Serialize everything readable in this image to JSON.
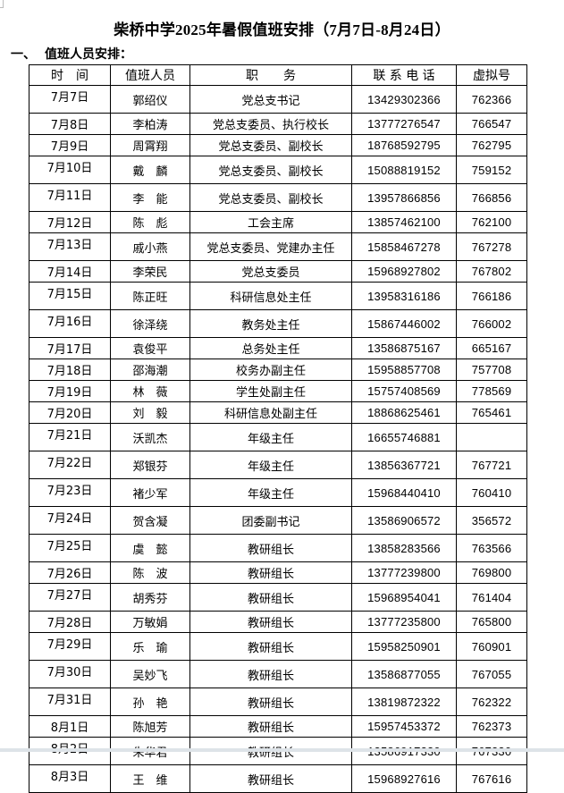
{
  "title": "柴桥中学2025年暑假值班安排（7月7日-8月24日）",
  "section": {
    "number": "一、",
    "label": "值班人员安排："
  },
  "table": {
    "headers": [
      "时　间",
      "值班人员",
      "职　　务",
      "联 系 电 话",
      "虚拟号"
    ],
    "rows": [
      [
        "7月7日",
        "郭绍仪",
        "党总支书记",
        "13429302366",
        "762366"
      ],
      [
        "7月8日",
        "李柏涛",
        "党总支委员、执行校长",
        "13777276547",
        "766547"
      ],
      [
        "7月9日",
        "周霄翔",
        "党总支委员、副校长",
        "18768592795",
        "762795"
      ],
      [
        "7月10日",
        "戴　麟",
        "党总支委员、副校长",
        "15088819152",
        "759152"
      ],
      [
        "7月11日",
        "李　能",
        "党总支委员、副校长",
        "13957866856",
        "766856"
      ],
      [
        "7月12日",
        "陈　彪",
        "工会主席",
        "13857462100",
        "762100"
      ],
      [
        "7月13日",
        "戚小燕",
        "党总支委员、党建办主任",
        "15858467278",
        "767278"
      ],
      [
        "7月14日",
        "李荣民",
        "党总支委员",
        "15968927802",
        "767802"
      ],
      [
        "7月15日",
        "陈正旺",
        "科研信息处主任",
        "13958316186",
        "766186"
      ],
      [
        "7月16日",
        "徐泽绕",
        "教务处主任",
        "15867446002",
        "766002"
      ],
      [
        "7月17日",
        "袁俊平",
        "总务处主任",
        "13586875167",
        "665167"
      ],
      [
        "7月18日",
        "邵海潮",
        "校务办副主任",
        "15958857708",
        "757708"
      ],
      [
        "7月19日",
        "林　薇",
        "学生处副主任",
        "15757408569",
        "778569"
      ],
      [
        "7月20日",
        "刘　毅",
        "科研信息处副主任",
        "18868625461",
        "765461"
      ],
      [
        "7月21日",
        "沃凯杰",
        "年级主任",
        "16655746881",
        ""
      ],
      [
        "7月22日",
        "郑银芬",
        "年级主任",
        "13856367721",
        "767721"
      ],
      [
        "7月23日",
        "褚少军",
        "年级主任",
        "15968440410",
        "760410"
      ],
      [
        "7月24日",
        "贺含凝",
        "团委副书记",
        "13586906572",
        "356572"
      ],
      [
        "7月25日",
        "虞　懿",
        "教研组长",
        "13858283566",
        "763566"
      ],
      [
        "7月26日",
        "陈　波",
        "教研组长",
        "13777239800",
        "769800"
      ],
      [
        "7月27日",
        "胡秀芬",
        "教研组长",
        "15968954041",
        "761404"
      ],
      [
        "7月28日",
        "万敏娟",
        "教研组长",
        "13777235800",
        "765800"
      ],
      [
        "7月29日",
        "乐　瑜",
        "教研组长",
        "15958250901",
        "760901"
      ],
      [
        "7月30日",
        "吴妙飞",
        "教研组长",
        "13586877055",
        "767055"
      ],
      [
        "7月31日",
        "孙　艳",
        "教研组长",
        "13819872322",
        "762322"
      ],
      [
        "8月1日",
        "陈旭芳",
        "教研组长",
        "15957453372",
        "762373"
      ],
      [
        "8月2日",
        "朱华君",
        "教研组长",
        "13586917330",
        "767330"
      ],
      [
        "8月3日",
        "王　维",
        "教研组长",
        "15968927616",
        "767616"
      ]
    ]
  }
}
